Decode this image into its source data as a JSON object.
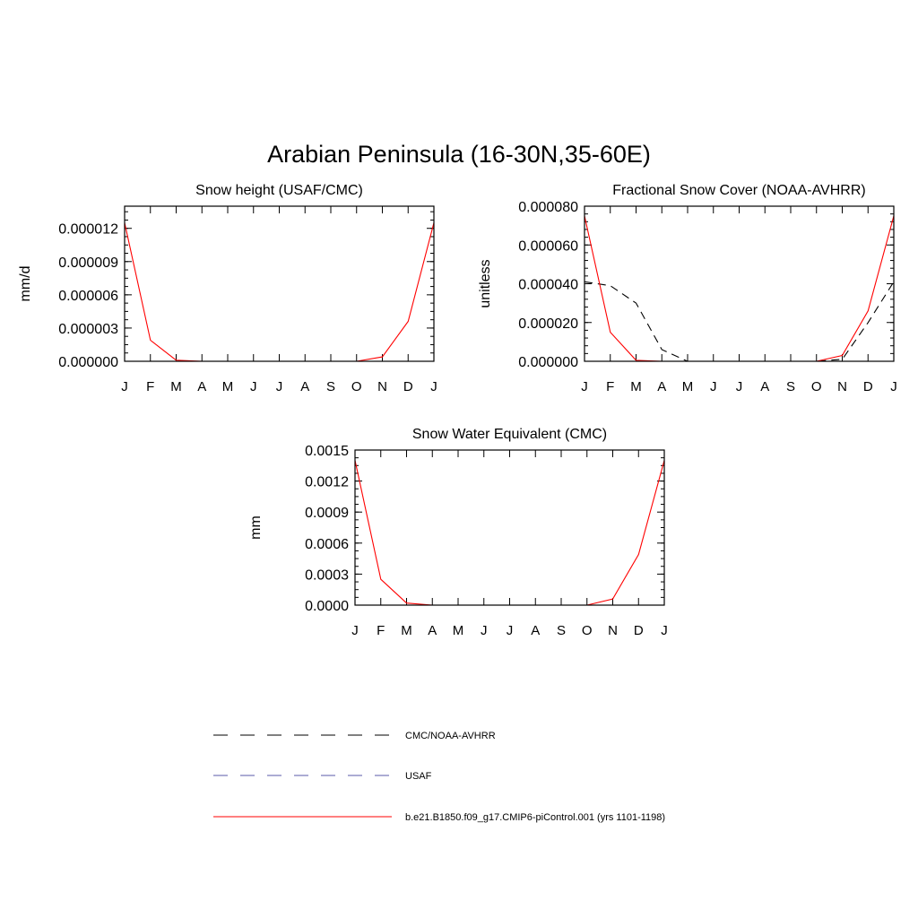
{
  "page_title": "Arabian Peninsula (16-30N,35-60E)",
  "month_labels": [
    "J",
    "F",
    "M",
    "A",
    "M",
    "J",
    "J",
    "A",
    "S",
    "O",
    "N",
    "D",
    "J"
  ],
  "legend": [
    {
      "label": "CMC/NOAA-AVHRR",
      "color": "#000000",
      "dash": "dashed"
    },
    {
      "label": "USAF",
      "color": "#0000ff",
      "dash": "dashed"
    },
    {
      "label": "b.e21.B1850.f09_g17.CMIP6-piControl.001 (yrs 1101-1198)",
      "color": "#ff0000",
      "dash": "solid"
    }
  ],
  "chart_data": [
    {
      "type": "line",
      "title": "Snow height (USAF/CMC)",
      "ylabel": "mm/d",
      "xlabel": "",
      "x": [
        "J",
        "F",
        "M",
        "A",
        "M",
        "J",
        "J",
        "A",
        "S",
        "O",
        "N",
        "D",
        "J"
      ],
      "ylim": [
        0,
        1.4e-05
      ],
      "yticks": [
        0,
        3e-06,
        6e-06,
        9e-06,
        1.2e-05
      ],
      "ytick_labels": [
        "0.000000",
        "0.000003",
        "0.000006",
        "0.000009",
        "0.000012"
      ],
      "series": [
        {
          "name": "CMC/NOAA-AVHRR",
          "color": "#000000",
          "dash": "dashed",
          "values": [
            0,
            0,
            0,
            0,
            0,
            0,
            0,
            0,
            0,
            0,
            0,
            0,
            0
          ]
        },
        {
          "name": "b.e21.B1850.f09_g17.CMIP6-piControl.001 (yrs 1101-1198)",
          "color": "#ff0000",
          "dash": "solid",
          "values": [
            1.25e-05,
            1.9e-06,
            1e-07,
            0,
            0,
            0,
            0,
            0,
            0,
            0,
            4e-07,
            3.6e-06,
            1.25e-05
          ]
        }
      ]
    },
    {
      "type": "line",
      "title": "Fractional Snow Cover (NOAA-AVHRR)",
      "ylabel": "unitless",
      "xlabel": "",
      "x": [
        "J",
        "F",
        "M",
        "A",
        "M",
        "J",
        "J",
        "A",
        "S",
        "O",
        "N",
        "D",
        "J"
      ],
      "ylim": [
        0,
        8e-05
      ],
      "yticks": [
        0,
        2e-05,
        4e-05,
        6e-05,
        8e-05
      ],
      "ytick_labels": [
        "0.000000",
        "0.000020",
        "0.000040",
        "0.000060",
        "0.000080"
      ],
      "series": [
        {
          "name": "CMC/NOAA-AVHRR",
          "color": "#000000",
          "dash": "dashed",
          "values": [
            4.1e-05,
            3.9e-05,
            3e-05,
            6e-06,
            0,
            0,
            0,
            0,
            0,
            0,
            1e-06,
            2e-05,
            4.1e-05
          ]
        },
        {
          "name": "b.e21.B1850.f09_g17.CMIP6-piControl.001 (yrs 1101-1198)",
          "color": "#ff0000",
          "dash": "solid",
          "values": [
            7.5e-05,
            1.5e-05,
            5e-07,
            0,
            0,
            0,
            0,
            0,
            0,
            0,
            3e-06,
            2.6e-05,
            7.5e-05
          ]
        }
      ]
    },
    {
      "type": "line",
      "title": "Snow Water Equivalent (CMC)",
      "ylabel": "mm",
      "xlabel": "",
      "x": [
        "J",
        "F",
        "M",
        "A",
        "M",
        "J",
        "J",
        "A",
        "S",
        "O",
        "N",
        "D",
        "J"
      ],
      "ylim": [
        0,
        0.0015
      ],
      "yticks": [
        0,
        0.0003,
        0.0006,
        0.0009,
        0.0012,
        0.0015
      ],
      "ytick_labels": [
        "0.0000",
        "0.0003",
        "0.0006",
        "0.0009",
        "0.0012",
        "0.0015"
      ],
      "series": [
        {
          "name": "CMC/NOAA-AVHRR",
          "color": "#000000",
          "dash": "dashed",
          "values": [
            0,
            0,
            0,
            0,
            0,
            0,
            0,
            0,
            0,
            0,
            0,
            0,
            0
          ]
        },
        {
          "name": "b.e21.B1850.f09_g17.CMIP6-piControl.001 (yrs 1101-1198)",
          "color": "#ff0000",
          "dash": "solid",
          "values": [
            0.0014,
            0.00025,
            2e-05,
            0,
            0,
            0,
            0,
            0,
            0,
            0,
            6e-05,
            0.00049,
            0.0014
          ]
        }
      ]
    }
  ]
}
